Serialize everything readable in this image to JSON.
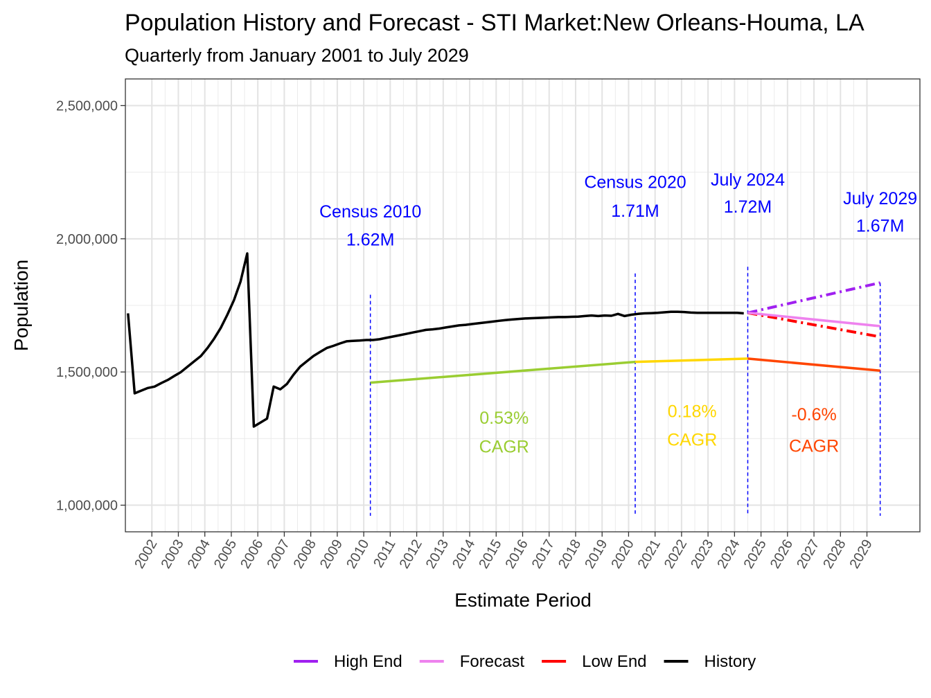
{
  "chart_data": {
    "type": "line",
    "title": "Population History and Forecast - STI Market:New Orleans-Houma, LA",
    "subtitle": "Quarterly from January 2001 to July 2029",
    "xlabel": "Estimate Period",
    "ylabel": "Population",
    "xlim": [
      2001.0,
      2031.0
    ],
    "ylim": [
      900000,
      2600000
    ],
    "y_ticks": [
      1000000,
      1500000,
      2000000,
      2500000
    ],
    "y_tick_labels": [
      "1,000,000",
      "1,500,000",
      "2,000,000",
      "2,500,000"
    ],
    "x_ticks": [
      2002,
      2003,
      2004,
      2005,
      2006,
      2007,
      2008,
      2009,
      2010,
      2011,
      2012,
      2013,
      2014,
      2015,
      2016,
      2017,
      2018,
      2019,
      2020,
      2021,
      2022,
      2023,
      2024,
      2025,
      2026,
      2027,
      2028,
      2029
    ],
    "x_tick_labels": [
      "2002",
      "2003",
      "2004",
      "2005",
      "2006",
      "2007",
      "2008",
      "2009",
      "2010",
      "2011",
      "2012",
      "2013",
      "2014",
      "2015",
      "2016",
      "2017",
      "2018",
      "2019",
      "2020",
      "2021",
      "2022",
      "2023",
      "2024",
      "2025",
      "2026",
      "2027",
      "2028",
      "2029"
    ],
    "grid": true,
    "legend_position": "bottom",
    "series": [
      {
        "name": "History",
        "color": "#000000",
        "dash": "solid",
        "x": [
          2001.1,
          2001.35,
          2001.6,
          2001.85,
          2002.1,
          2002.35,
          2002.6,
          2002.85,
          2003.1,
          2003.35,
          2003.6,
          2003.85,
          2004.1,
          2004.35,
          2004.6,
          2004.85,
          2005.1,
          2005.35,
          2005.6,
          2005.85,
          2006.1,
          2006.35,
          2006.6,
          2006.85,
          2007.1,
          2007.35,
          2007.6,
          2007.85,
          2008.1,
          2008.35,
          2008.6,
          2008.85,
          2009.1,
          2009.35,
          2009.6,
          2009.85,
          2010.1,
          2010.35,
          2010.6,
          2010.85,
          2011.1,
          2011.35,
          2011.6,
          2011.85,
          2012.1,
          2012.35,
          2012.6,
          2012.85,
          2013.1,
          2013.35,
          2013.6,
          2013.85,
          2014.1,
          2014.35,
          2014.6,
          2014.85,
          2015.1,
          2015.35,
          2015.6,
          2015.85,
          2016.1,
          2016.35,
          2016.6,
          2016.85,
          2017.1,
          2017.35,
          2017.6,
          2017.85,
          2018.1,
          2018.35,
          2018.6,
          2018.85,
          2019.1,
          2019.35,
          2019.6,
          2019.85,
          2020.1,
          2020.35,
          2020.6,
          2020.85,
          2021.1,
          2021.35,
          2021.6,
          2021.85,
          2022.1,
          2022.35,
          2022.6,
          2022.85,
          2023.1,
          2023.35,
          2023.6,
          2023.85,
          2024.1,
          2024.35
        ],
        "values": [
          1720000,
          1420000,
          1430000,
          1440000,
          1445000,
          1458000,
          1470000,
          1485000,
          1500000,
          1520000,
          1540000,
          1560000,
          1590000,
          1625000,
          1665000,
          1715000,
          1770000,
          1840000,
          1945000,
          1295000,
          1310000,
          1325000,
          1445000,
          1435000,
          1455000,
          1490000,
          1520000,
          1540000,
          1560000,
          1575000,
          1590000,
          1598000,
          1607000,
          1615000,
          1617000,
          1618000,
          1620000,
          1620000,
          1623000,
          1628000,
          1633000,
          1638000,
          1643000,
          1648000,
          1653000,
          1658000,
          1660000,
          1663000,
          1667000,
          1671000,
          1675000,
          1677000,
          1680000,
          1683000,
          1686000,
          1689000,
          1692000,
          1695000,
          1697000,
          1699000,
          1701000,
          1702000,
          1703000,
          1704000,
          1705000,
          1706000,
          1706000,
          1707000,
          1708000,
          1710000,
          1712000,
          1710000,
          1712000,
          1711000,
          1718000,
          1710000,
          1715000,
          1718000,
          1720000,
          1721000,
          1722000,
          1724000,
          1726000,
          1726000,
          1725000,
          1723000,
          1722000,
          1722000,
          1722000,
          1722000,
          1722000,
          1722000,
          1722000,
          1720000
        ]
      },
      {
        "name": "High End",
        "color": "#a020f0",
        "dash": "dashdot",
        "x": [
          2024.5,
          2029.5
        ],
        "values": [
          1722000,
          1835000
        ]
      },
      {
        "name": "Forecast",
        "color": "#ee82ee",
        "dash": "solid",
        "x": [
          2024.5,
          2029.5
        ],
        "values": [
          1722000,
          1672000
        ]
      },
      {
        "name": "Low End",
        "color": "#ff0000",
        "dash": "dashdot",
        "x": [
          2024.5,
          2029.5
        ],
        "values": [
          1722000,
          1632000
        ]
      },
      {
        "name": "CAGR 2010-2020",
        "color": "#9acd32",
        "dash": "solid",
        "legend": false,
        "x": [
          2010.25,
          2020.25
        ],
        "values": [
          1460000,
          1538000
        ]
      },
      {
        "name": "CAGR 2020-2024",
        "color": "#ffd700",
        "dash": "solid",
        "legend": false,
        "x": [
          2020.25,
          2024.5
        ],
        "values": [
          1538000,
          1550000
        ]
      },
      {
        "name": "CAGR 2024-2029",
        "color": "#ff4500",
        "dash": "solid",
        "legend": false,
        "x": [
          2024.5,
          2029.5
        ],
        "values": [
          1550000,
          1505000
        ]
      }
    ],
    "vlines": [
      {
        "x": 2010.25,
        "from": 960000,
        "to": 1790000,
        "color": "#0000ff"
      },
      {
        "x": 2020.25,
        "from": 960000,
        "to": 1870000,
        "color": "#0000ff"
      },
      {
        "x": 2024.5,
        "from": 960000,
        "to": 1895000,
        "color": "#0000ff"
      },
      {
        "x": 2029.5,
        "from": 960000,
        "to": 1835000,
        "color": "#0000ff"
      }
    ],
    "annotations": [
      {
        "line1": "Census 2010",
        "line2": "1.62M",
        "x": 2010.25,
        "y1": 2080000,
        "y2": 1975000,
        "color": "#0000ff"
      },
      {
        "line1": "Census 2020",
        "line2": "1.71M",
        "x": 2020.25,
        "y1": 2190000,
        "y2": 2083000,
        "color": "#0000ff"
      },
      {
        "line1": "July 2024",
        "line2": "1.72M",
        "x": 2024.5,
        "y1": 2200000,
        "y2": 2098000,
        "color": "#0000ff"
      },
      {
        "line1": "July 2029",
        "line2": "1.67M",
        "x": 2029.5,
        "y1": 2130000,
        "y2": 2027000,
        "color": "#0000ff"
      },
      {
        "line1": "0.53%",
        "line2": "CAGR",
        "x": 2015.3,
        "y1": 1305000,
        "y2": 1198000,
        "color": "#9acd32"
      },
      {
        "line1": "0.18%",
        "line2": "CAGR",
        "x": 2022.4,
        "y1": 1330000,
        "y2": 1223000,
        "color": "#ffd700"
      },
      {
        "line1": "-0.6%",
        "line2": "CAGR",
        "x": 2027.0,
        "y1": 1318000,
        "y2": 1200000,
        "color": "#ff4500"
      }
    ],
    "legend": [
      {
        "label": "High End",
        "color": "#a020f0"
      },
      {
        "label": "Forecast",
        "color": "#ee82ee"
      },
      {
        "label": "Low End",
        "color": "#ff0000"
      },
      {
        "label": "History",
        "color": "#000000"
      }
    ]
  }
}
